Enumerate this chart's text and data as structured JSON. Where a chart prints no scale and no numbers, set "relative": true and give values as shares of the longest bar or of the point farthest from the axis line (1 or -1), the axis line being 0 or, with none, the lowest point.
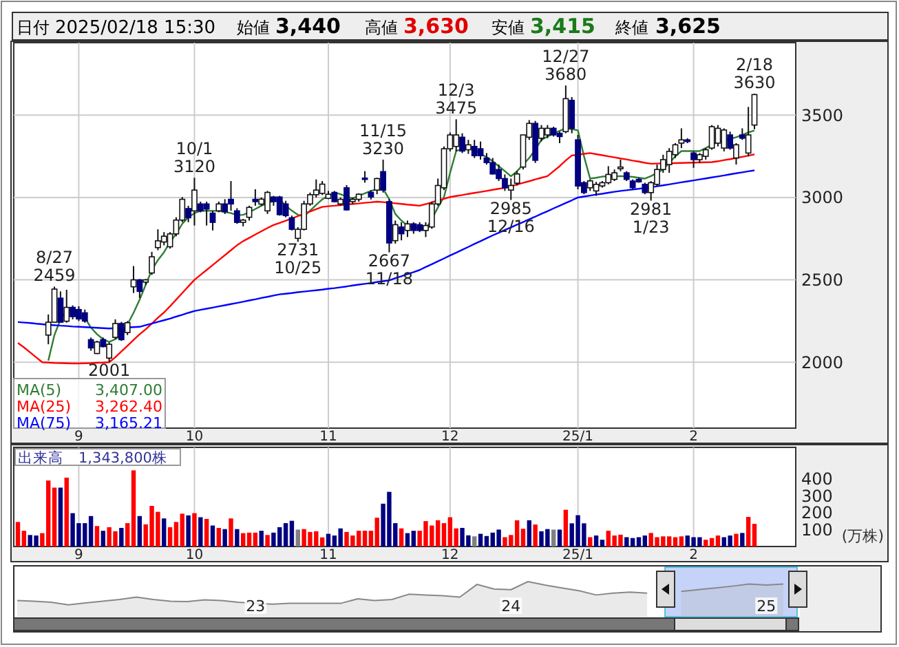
{
  "chart_data": [
    {
      "type": "other",
      "annotations": [
        "日付",
        "2025/02/18 15:30",
        "始値",
        "3,440",
        "高値",
        "3,630",
        "安値",
        "3,415",
        "終値",
        "3,625"
      ]
    },
    {
      "type": "candlestick",
      "categories": [
        null,
        null,
        null,
        null,
        null,
        null,
        null,
        null,
        null,
        null,
        "9",
        null,
        null,
        null,
        null,
        null,
        null,
        null,
        null,
        null,
        null,
        null,
        null,
        null,
        null,
        null,
        null,
        null,
        null,
        "10",
        null,
        null,
        null,
        null,
        null,
        null,
        null,
        null,
        null,
        null,
        null,
        null,
        null,
        null,
        null,
        null,
        null,
        null,
        null,
        null,
        null,
        "11",
        null,
        null,
        null,
        null,
        null,
        null,
        null,
        null,
        null,
        null,
        null,
        null,
        null,
        null,
        null,
        null,
        null,
        null,
        null,
        "12",
        null,
        null,
        null,
        null,
        null,
        null,
        null,
        null,
        null,
        null,
        null,
        null,
        null,
        null,
        null,
        null,
        null,
        null,
        null,
        null,
        "25/1",
        null,
        null,
        null,
        null,
        null,
        null,
        null,
        null,
        null,
        null,
        null,
        null,
        null,
        null,
        null,
        null,
        null,
        null,
        "2",
        null,
        null,
        null,
        null,
        null,
        null,
        null,
        null,
        null,
        null
      ],
      "ohlc": [
        null,
        null,
        null,
        null,
        null,
        [
          2165,
          2290,
          2109,
          2243
        ],
        [
          2243,
          2459,
          2240,
          2444
        ],
        [
          2389,
          2430,
          2240,
          2243
        ],
        [
          2249,
          2440,
          2240,
          2333
        ],
        [
          2333,
          2345,
          2260,
          2277
        ],
        [
          2320,
          2340,
          2250,
          2263
        ],
        [
          2300,
          2320,
          2240,
          2250
        ],
        [
          2137,
          2150,
          2070,
          2087
        ],
        [
          2053,
          2130,
          2050,
          2123
        ],
        [
          2137,
          2150,
          2090,
          2095
        ],
        [
          2025,
          2120,
          2001,
          2109
        ],
        [
          2151,
          2260,
          2140,
          2235
        ],
        [
          2235,
          2245,
          2130,
          2137
        ],
        [
          2180,
          2250,
          2165,
          2240
        ],
        [
          2458,
          2584,
          2420,
          2500
        ],
        [
          2500,
          2505,
          2390,
          2430
        ],
        [
          2486,
          2505,
          2470,
          2500
        ],
        [
          2542,
          2670,
          2530,
          2640
        ],
        [
          2696,
          2807,
          2680,
          2737
        ],
        [
          2730,
          2790,
          2710,
          2765
        ],
        [
          2701,
          2790,
          2690,
          2779
        ],
        [
          2779,
          2880,
          2765,
          2863
        ],
        [
          2863,
          3003,
          2850,
          2989
        ],
        [
          2933,
          2950,
          2850,
          2877
        ],
        [
          2919,
          3120,
          2830,
          3045
        ],
        [
          2961,
          2975,
          2910,
          2919
        ],
        [
          2961,
          2975,
          2830,
          2930
        ],
        [
          2905,
          2920,
          2800,
          2849
        ],
        [
          2919,
          2975,
          2910,
          2961
        ],
        [
          2961,
          2990,
          2900,
          2914
        ],
        [
          2989,
          3100,
          2920,
          2961
        ],
        [
          2919,
          2935,
          2840,
          2849
        ],
        [
          2849,
          2870,
          2825,
          2863
        ],
        [
          2880,
          2950,
          2860,
          2940
        ],
        [
          2989,
          3050,
          2950,
          2975
        ],
        [
          2960,
          3000,
          2950,
          2990
        ],
        [
          2919,
          3040,
          2900,
          3031
        ],
        [
          3003,
          3010,
          2950,
          2975
        ],
        [
          3003,
          3010,
          2890,
          2896
        ],
        [
          2961,
          2980,
          2880,
          2890
        ],
        [
          2877,
          2890,
          2800,
          2807
        ],
        [
          2752,
          2820,
          2731,
          2807
        ],
        [
          2807,
          2980,
          2800,
          2961
        ],
        [
          2961,
          3030,
          2950,
          3017
        ],
        [
          3017,
          3110,
          3000,
          3045
        ],
        [
          3025,
          3100,
          3015,
          3081
        ],
        [
          2995,
          3040,
          2990,
          3020
        ],
        [
          3031,
          3040,
          2970,
          2975
        ],
        [
          2961,
          3000,
          2950,
          2989
        ],
        [
          3059,
          3075,
          2920,
          2925
        ],
        [
          2975,
          3000,
          2960,
          2989
        ],
        [
          2989,
          3025,
          2975,
          3020
        ],
        [
          3118,
          3160,
          3090,
          3110
        ],
        [
          3031,
          3045,
          2988,
          3003
        ],
        [
          3045,
          3120,
          3020,
          3115
        ],
        [
          3157,
          3230,
          3030,
          3045
        ],
        [
          2975,
          2990,
          2667,
          2724
        ],
        [
          2738,
          2860,
          2720,
          2835
        ],
        [
          2821,
          2850,
          2740,
          2780
        ],
        [
          2800,
          2860,
          2760,
          2840
        ],
        [
          2840,
          2850,
          2780,
          2800
        ],
        [
          2835,
          2850,
          2790,
          2800
        ],
        [
          2800,
          2850,
          2760,
          2830
        ],
        [
          2821,
          2975,
          2810,
          2961
        ],
        [
          2961,
          3115,
          2950,
          3073
        ],
        [
          3059,
          3310,
          3045,
          3296
        ],
        [
          3296,
          3395,
          3280,
          3380
        ],
        [
          3310,
          3475,
          3280,
          3380
        ],
        [
          3366,
          3390,
          3270,
          3282
        ],
        [
          3290,
          3350,
          3265,
          3320
        ],
        [
          3310,
          3350,
          3240,
          3254
        ],
        [
          3296,
          3340,
          3230,
          3254
        ],
        [
          3240,
          3270,
          3200,
          3212
        ],
        [
          3212,
          3240,
          3140,
          3143
        ],
        [
          3170,
          3200,
          3100,
          3115
        ],
        [
          3115,
          3140,
          3040,
          3059
        ],
        [
          3045,
          3115,
          2985,
          3073
        ],
        [
          3087,
          3160,
          3073,
          3143
        ],
        [
          3185,
          3380,
          3170,
          3380
        ],
        [
          3366,
          3470,
          3350,
          3450
        ],
        [
          3450,
          3465,
          3210,
          3226
        ],
        [
          3360,
          3440,
          3340,
          3420
        ],
        [
          3380,
          3440,
          3360,
          3420
        ],
        [
          3420,
          3430,
          3370,
          3380
        ],
        [
          3390,
          3400,
          3330,
          3370
        ],
        [
          3400,
          3680,
          3390,
          3600
        ],
        [
          3590,
          3610,
          3390,
          3420
        ],
        [
          3350,
          3380,
          3050,
          3070
        ],
        [
          3090,
          3100,
          3020,
          3030
        ],
        [
          3059,
          3110,
          3040,
          3101
        ],
        [
          3040,
          3095,
          3010,
          3080
        ],
        [
          3070,
          3100,
          3060,
          3090
        ],
        [
          3090,
          3190,
          3080,
          3140
        ],
        [
          3110,
          3170,
          3100,
          3150
        ],
        [
          3175,
          3230,
          3160,
          3185
        ],
        [
          3150,
          3160,
          3100,
          3110
        ],
        [
          3100,
          3110,
          3050,
          3060
        ],
        [
          3110,
          3120,
          3090,
          3095
        ],
        [
          3080,
          3090,
          3020,
          3030
        ],
        [
          3030,
          3100,
          2981,
          3090
        ],
        [
          3080,
          3200,
          3070,
          3170
        ],
        [
          3170,
          3260,
          3150,
          3230
        ],
        [
          3200,
          3300,
          3150,
          3280
        ],
        [
          3260,
          3330,
          3240,
          3320
        ],
        [
          3330,
          3420,
          3300,
          3350
        ],
        [
          3350,
          3360,
          3330,
          3340
        ],
        [
          3270,
          3280,
          3180,
          3230
        ],
        [
          3230,
          3270,
          3210,
          3260
        ],
        [
          3250,
          3300,
          3230,
          3290
        ],
        [
          3300,
          3440,
          3290,
          3430
        ],
        [
          3330,
          3440,
          3310,
          3420
        ],
        [
          3300,
          3420,
          3280,
          3410
        ],
        [
          3380,
          3400,
          3290,
          3300
        ],
        [
          3240,
          3330,
          3200,
          3320
        ],
        [
          3380,
          3420,
          3350,
          3360
        ],
        [
          3270,
          3550,
          3250,
          3380
        ],
        [
          3440,
          3630,
          3415,
          3625
        ]
      ],
      "series": [
        {
          "name": "MA(5)",
          "type": "line",
          "color": "#2e7d32",
          "values": [
            null,
            null,
            null,
            null,
            null,
            2010,
            2165,
            2260,
            2310,
            2320,
            2290,
            2270,
            2210,
            2170,
            2140,
            2123,
            2140,
            2165,
            2230,
            2300,
            2380,
            2470,
            2560,
            2620,
            2668,
            2730,
            2779,
            2840,
            2880,
            2905,
            2919,
            2920,
            2919,
            2919,
            2912,
            2905,
            2893,
            2895,
            2910,
            2930,
            2950,
            2965,
            2980,
            2989,
            2950,
            2920,
            2895,
            2886,
            2920,
            2955,
            2989,
            3010,
            3031,
            3020,
            3005,
            2995,
            3010,
            3025,
            3040,
            3050,
            3053,
            2990,
            2900,
            2860,
            2830,
            2821,
            2812,
            2807,
            2870,
            2940,
            3003,
            3150,
            3282,
            3295,
            3310,
            3290,
            3265,
            3245,
            3220,
            3190,
            3160,
            3129,
            3160,
            3200,
            3240,
            3290,
            3350,
            3370,
            3390,
            3405,
            3420,
            3415,
            3408,
            3250,
            3115,
            3120,
            3127,
            3129,
            3129,
            3130,
            3129,
            3125,
            3120,
            3115,
            3130,
            3150,
            3170,
            3210,
            3250,
            3282,
            3282,
            3282,
            3282,
            3300,
            3320,
            3338,
            3348,
            3356,
            3366,
            3380,
            3395,
            3407
          ]
        },
        {
          "name": "MA(25)",
          "type": "line",
          "color": "#ff0000",
          "values": [
            2117,
            2090,
            2060,
            2030,
            2000,
            1998,
            1996,
            1995,
            1994,
            1993,
            1993,
            1994,
            1995,
            1997,
            1998,
            2000,
            2030,
            2065,
            2100,
            2135,
            2170,
            2200,
            2235,
            2270,
            2302,
            2340,
            2380,
            2420,
            2460,
            2500,
            2530,
            2560,
            2590,
            2620,
            2650,
            2680,
            2710,
            2735,
            2755,
            2775,
            2795,
            2815,
            2833,
            2846,
            2859,
            2873,
            2887,
            2901,
            2915,
            2929,
            2943,
            2947,
            2950,
            2954,
            2957,
            2961,
            2964,
            2968,
            2971,
            2975,
            2972,
            2968,
            2965,
            2961,
            2957,
            2954,
            2950,
            2960,
            2971,
            2982,
            2992,
            3003,
            3009,
            3015,
            3022,
            3028,
            3034,
            3040,
            3047,
            3053,
            3059,
            3069,
            3079,
            3089,
            3099,
            3110,
            3120,
            3130,
            3160,
            3190,
            3225,
            3255,
            3260,
            3265,
            3270,
            3263,
            3257,
            3250,
            3244,
            3237,
            3231,
            3224,
            3218,
            3211,
            3205,
            3206,
            3207,
            3208,
            3209,
            3210,
            3211,
            3212,
            3213,
            3214,
            3215,
            3220,
            3227,
            3233,
            3240,
            3247,
            3254,
            3262
          ]
        },
        {
          "name": "MA(75)",
          "type": "line",
          "color": "#0000ff",
          "values": [
            2244,
            2241,
            2238,
            2234,
            2231,
            2227,
            2225,
            2222,
            2220,
            2217,
            2215,
            2213,
            2211,
            2209,
            2207,
            2205,
            2207,
            2209,
            2211,
            2213,
            2215,
            2225,
            2235,
            2245,
            2255,
            2265,
            2277,
            2288,
            2300,
            2311,
            2318,
            2325,
            2332,
            2339,
            2346,
            2353,
            2360,
            2367,
            2375,
            2382,
            2390,
            2397,
            2405,
            2412,
            2416,
            2420,
            2425,
            2429,
            2433,
            2437,
            2441,
            2446,
            2450,
            2455,
            2460,
            2466,
            2471,
            2476,
            2481,
            2487,
            2492,
            2497,
            2510,
            2522,
            2535,
            2547,
            2560,
            2578,
            2595,
            2613,
            2630,
            2648,
            2665,
            2683,
            2700,
            2718,
            2735,
            2753,
            2770,
            2786,
            2803,
            2819,
            2835,
            2851,
            2868,
            2884,
            2901,
            2917,
            2934,
            2950,
            2967,
            2983,
            3000,
            3006,
            3012,
            3018,
            3023,
            3029,
            3035,
            3040,
            3044,
            3049,
            3053,
            3058,
            3062,
            3068,
            3074,
            3080,
            3086,
            3092,
            3098,
            3104,
            3110,
            3116,
            3122,
            3128,
            3134,
            3141,
            3147,
            3153,
            3159,
            3165
          ]
        }
      ],
      "ylim": [
        1600,
        3940
      ],
      "yticks": [
        2000,
        2500,
        3000,
        3500
      ],
      "grid": true,
      "legend": "bottom left",
      "annotations": [
        {
          "text": "8/27\n2459",
          "y": 2459
        },
        {
          "text": "2001",
          "y": 2001
        },
        {
          "text": "10/1\n3120",
          "y": 3120
        },
        {
          "text": "2731\n10/25",
          "y": 2731
        },
        {
          "text": "11/15\n3230",
          "y": 3230
        },
        {
          "text": "2667\n11/18",
          "y": 2667
        },
        {
          "text": "12/3\n3475",
          "y": 3475
        },
        {
          "text": "2985\n12/16",
          "y": 2985
        },
        {
          "text": "12/27\n3680",
          "y": 3680
        },
        {
          "text": "2981\n1/23",
          "y": 2981
        },
        {
          "text": "2/18\n3630",
          "y": 3630
        },
        "3,407.00",
        "3,262.40",
        "3,165.21"
      ]
    },
    {
      "type": "bar",
      "title": "出来高　1,343,800株",
      "ylabel": "(万株)",
      "categories": [
        null,
        null,
        null,
        null,
        null,
        null,
        null,
        null,
        null,
        null,
        "9",
        null,
        null,
        null,
        null,
        null,
        null,
        null,
        null,
        null,
        null,
        null,
        null,
        null,
        null,
        null,
        null,
        null,
        null,
        "10",
        null,
        null,
        null,
        null,
        null,
        null,
        null,
        null,
        null,
        null,
        null,
        null,
        null,
        null,
        null,
        null,
        null,
        null,
        null,
        null,
        null,
        "11",
        null,
        null,
        null,
        null,
        null,
        null,
        null,
        null,
        null,
        null,
        null,
        null,
        null,
        null,
        null,
        null,
        null,
        null,
        null,
        "12",
        null,
        null,
        null,
        null,
        null,
        null,
        null,
        null,
        null,
        null,
        null,
        null,
        null,
        null,
        null,
        null,
        null,
        null,
        null,
        null,
        "25/1",
        null,
        null,
        null,
        null,
        null,
        null,
        null,
        null,
        null,
        null,
        null,
        null,
        null,
        null,
        null,
        null,
        null,
        null,
        "2",
        null,
        null,
        null,
        null,
        null,
        null,
        null,
        null,
        null,
        null
      ],
      "values": [
        145,
        93,
        68,
        65,
        79,
        390,
        348,
        348,
        407,
        197,
        138,
        138,
        180,
        121,
        93,
        114,
        90,
        110,
        138,
        450,
        180,
        131,
        240,
        205,
        166,
        114,
        145,
        194,
        184,
        197,
        173,
        163,
        124,
        110,
        103,
        166,
        103,
        79,
        82,
        82,
        93,
        68,
        82,
        114,
        138,
        152,
        100,
        103,
        86,
        90,
        54,
        75,
        65,
        107,
        86,
        65,
        93,
        93,
        93,
        170,
        253,
        323,
        138,
        107,
        79,
        93,
        93,
        150,
        124,
        155,
        138,
        173,
        107,
        110,
        66,
        60,
        75,
        62,
        82,
        100,
        55,
        68,
        155,
        105,
        155,
        130,
        90,
        103,
        100,
        100,
        217,
        137,
        185,
        137,
        55,
        65,
        40,
        93,
        65,
        70,
        55,
        50,
        55,
        65,
        80,
        55,
        60,
        60,
        55,
        60,
        65,
        55,
        55,
        40,
        50,
        65,
        55,
        65,
        75,
        80,
        175,
        134
      ],
      "colors": [
        "#ff0000",
        "#ff0000",
        "#000080",
        "#000080",
        "#ff0000",
        "#ff0000",
        "#ff0000",
        "#000080",
        "#ff0000",
        "#000080",
        "#000080",
        "#000080",
        "#000080",
        "#ff0000",
        "#000080",
        "#ff0000",
        "#ff0000",
        "#000080",
        "#ff0000",
        "#ff0000",
        "#000080",
        "#ff0000",
        "#ff0000",
        "#ff0000",
        "#000080",
        "#ff0000",
        "#ff0000",
        "#ff0000",
        "#000080",
        "#ff0000",
        "#000080",
        "#ff0000",
        "#000080",
        "#ff0000",
        "#000080",
        "#ff0000",
        "#000080",
        "#ff0000",
        "#ff0000",
        "#ff0000",
        "#000080",
        "#ff0000",
        "#000080",
        "#000080",
        "#000080",
        "#000080",
        "#808080",
        "#ff0000",
        "#ff0000",
        "#ff0000",
        "#ff0000",
        "#000080",
        "#000080",
        "#000080",
        "#ff0000",
        "#ff0000",
        "#ff0000",
        "#ff0000",
        "#ff0000",
        "#ff0000",
        "#000080",
        "#000080",
        "#000080",
        "#ff0000",
        "#000080",
        "#000080",
        "#ff0000",
        "#ff0000",
        "#ff0000",
        "#ff0000",
        "#ff0000",
        "#ff0000",
        "#ff0000",
        "#000080",
        "#000080",
        "#808080",
        "#000080",
        "#000080",
        "#000080",
        "#000080",
        "#ff0000",
        "#ff0000",
        "#ff0000",
        "#ff0000",
        "#000080",
        "#ff0000",
        "#000080",
        "#000080",
        "#808080",
        "#000080",
        "#ff0000",
        "#000080",
        "#000080",
        "#000080",
        "#ff0000",
        "#000080",
        "#000080",
        "#ff0000",
        "#ff0000",
        "#ff0000",
        "#000080",
        "#000080",
        "#000080",
        "#000080",
        "#ff0000",
        "#ff0000",
        "#ff0000",
        "#ff0000",
        "#ff0000",
        "#ff0000",
        "#000080",
        "#000080",
        "#000080",
        "#ff0000",
        "#ff0000",
        "#ff0000",
        "#000080",
        "#000080",
        "#ff0000",
        "#000080",
        "#ff0000",
        "#ff0000"
      ],
      "ylim": [
        0,
        480
      ],
      "yticks": [
        100,
        200,
        300,
        400
      ],
      "grid": "x"
    },
    {
      "type": "area",
      "relative": true,
      "color": "#888888",
      "categories": [
        null,
        null,
        null,
        null,
        null,
        null,
        null,
        null,
        null,
        null,
        null,
        null,
        null,
        null,
        "23",
        null,
        null,
        null,
        null,
        null,
        null,
        null,
        null,
        null,
        null,
        null,
        null,
        null,
        null,
        "24",
        null,
        null,
        null,
        null,
        null,
        null,
        null,
        null,
        null,
        null,
        null,
        null,
        null,
        null,
        "25",
        null
      ],
      "values": [
        0.46,
        0.44,
        0.41,
        0.34,
        0.39,
        0.44,
        0.49,
        0.56,
        0.49,
        0.44,
        0.43,
        0.48,
        0.46,
        0.41,
        0.38,
        0.36,
        0.38,
        0.38,
        0.38,
        0.38,
        0.51,
        0.46,
        0.49,
        0.64,
        0.62,
        0.6,
        0.56,
        0.92,
        0.79,
        0.77,
        1,
        0.9,
        0.82,
        0.74,
        0.62,
        0.67,
        0.7,
        0.67,
        null,
        0.72,
        0.77,
        0.82,
        0.87,
        0.93,
        0.9,
        0.93
      ]
    }
  ]
}
